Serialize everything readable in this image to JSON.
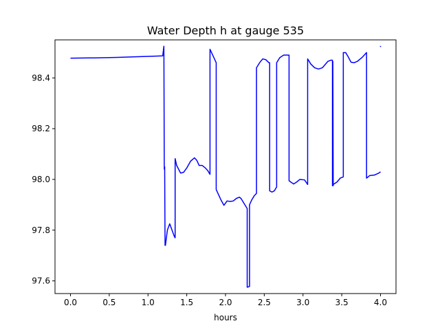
{
  "chart_data": {
    "type": "line",
    "title": "Water Depth h at gauge 535",
    "xlabel": "hours",
    "ylabel": "",
    "xlim": [
      -0.2,
      4.2
    ],
    "ylim": [
      97.55,
      98.55
    ],
    "xticks": [
      0.0,
      0.5,
      1.0,
      1.5,
      2.0,
      2.5,
      3.0,
      3.5,
      4.0
    ],
    "xtick_labels": [
      "0.0",
      "0.5",
      "1.0",
      "1.5",
      "2.0",
      "2.5",
      "3.0",
      "3.5",
      "4.0"
    ],
    "yticks": [
      97.6,
      97.8,
      98.0,
      98.2,
      98.4
    ],
    "ytick_labels": [
      "97.6",
      "97.8",
      "98.0",
      "98.2",
      "98.4"
    ],
    "grid": false,
    "legend": "none",
    "series": [
      {
        "color": "#0000ff",
        "x": [
          0.0,
          0.3,
          0.6,
          0.9,
          1.1,
          1.19,
          1.205,
          1.21,
          1.215,
          1.22,
          1.225,
          1.25,
          1.28,
          1.31,
          1.34,
          1.35,
          1.35,
          1.37,
          1.42,
          1.46,
          1.5,
          1.55,
          1.6,
          1.63,
          1.66,
          1.7,
          1.74,
          1.77,
          1.8,
          1.8,
          1.835,
          1.88,
          1.88,
          1.91,
          1.94,
          1.98,
          2.02,
          2.06,
          2.1,
          2.14,
          2.18,
          2.2,
          2.24,
          2.28,
          2.28,
          2.31,
          2.31,
          2.34,
          2.37,
          2.4,
          2.4,
          2.44,
          2.48,
          2.52,
          2.56,
          2.57,
          2.57,
          2.6,
          2.63,
          2.66,
          2.66,
          2.7,
          2.75,
          2.8,
          2.82,
          2.82,
          2.84,
          2.88,
          2.92,
          2.96,
          3.02,
          3.06,
          3.06,
          3.1,
          3.15,
          3.2,
          3.25,
          3.32,
          3.36,
          3.38,
          3.38,
          3.385,
          3.39,
          3.39,
          3.44,
          3.48,
          3.52,
          3.52,
          3.55,
          3.58,
          3.62,
          3.66,
          3.7,
          3.76,
          3.82,
          3.82,
          3.86,
          3.92,
          3.98,
          4.0
        ],
        "y": [
          98.478,
          98.479,
          98.481,
          98.484,
          98.486,
          98.487,
          98.525,
          98.04,
          98.05,
          97.74,
          97.74,
          97.8,
          97.825,
          97.8,
          97.775,
          97.77,
          98.082,
          98.055,
          98.025,
          98.028,
          98.045,
          98.072,
          98.085,
          98.075,
          98.055,
          98.055,
          98.045,
          98.035,
          98.02,
          98.513,
          98.49,
          98.46,
          97.96,
          97.94,
          97.92,
          97.898,
          97.915,
          97.913,
          97.915,
          97.925,
          97.93,
          97.925,
          97.905,
          97.885,
          97.575,
          97.578,
          97.9,
          97.92,
          97.935,
          97.945,
          98.44,
          98.46,
          98.475,
          98.472,
          98.46,
          98.46,
          97.955,
          97.95,
          97.955,
          97.97,
          98.46,
          98.48,
          98.49,
          98.49,
          98.49,
          97.995,
          97.99,
          97.982,
          97.99,
          98.0,
          97.998,
          97.98,
          98.475,
          98.455,
          98.44,
          98.435,
          98.44,
          98.465,
          98.47,
          98.47,
          97.975,
          98.465,
          97.975,
          97.98,
          97.99,
          98.005,
          98.01,
          98.5,
          98.5,
          98.485,
          98.462,
          98.46,
          98.465,
          98.48,
          98.5,
          98.005,
          98.015,
          98.017,
          98.025,
          98.03
        ]
      },
      {
        "color": "#0000ff",
        "x": [
          4.0,
          4.0
        ],
        "y": [
          98.522,
          98.526
        ]
      }
    ]
  }
}
